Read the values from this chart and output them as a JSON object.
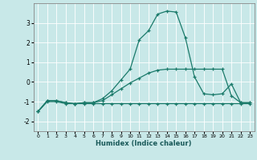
{
  "xlabel": "Humidex (Indice chaleur)",
  "background_color": "#c8e8e8",
  "grid_color": "#ffffff",
  "line_color": "#1a7a6a",
  "xlim": [
    -0.5,
    23.5
  ],
  "ylim": [
    -2.5,
    4.0
  ],
  "yticks": [
    -2,
    -1,
    0,
    1,
    2,
    3
  ],
  "xticks": [
    0,
    1,
    2,
    3,
    4,
    5,
    6,
    7,
    8,
    9,
    10,
    11,
    12,
    13,
    14,
    15,
    16,
    17,
    18,
    19,
    20,
    21,
    22,
    23
  ],
  "line_flat_x": [
    0,
    1,
    2,
    3,
    4,
    5,
    6,
    7,
    8,
    9,
    10,
    11,
    12,
    13,
    14,
    15,
    16,
    17,
    18,
    19,
    20,
    21,
    22,
    23
  ],
  "line_flat_y": [
    -1.5,
    -1.0,
    -1.0,
    -1.1,
    -1.1,
    -1.1,
    -1.1,
    -1.1,
    -1.1,
    -1.1,
    -1.1,
    -1.1,
    -1.1,
    -1.1,
    -1.1,
    -1.1,
    -1.1,
    -1.1,
    -1.1,
    -1.1,
    -1.1,
    -1.1,
    -1.1,
    -1.1
  ],
  "line_slope_x": [
    0,
    1,
    2,
    3,
    4,
    5,
    6,
    7,
    8,
    9,
    10,
    11,
    12,
    13,
    14,
    15,
    16,
    17,
    18,
    19,
    20,
    21,
    22,
    23
  ],
  "line_slope_y": [
    -1.5,
    -0.95,
    -0.95,
    -1.05,
    -1.1,
    -1.05,
    -1.05,
    -0.95,
    -0.65,
    -0.35,
    -0.05,
    0.2,
    0.45,
    0.6,
    0.65,
    0.65,
    0.65,
    0.65,
    0.65,
    0.65,
    0.65,
    -0.7,
    -1.05,
    -1.05
  ],
  "line_peak_x": [
    0,
    1,
    2,
    3,
    4,
    5,
    6,
    7,
    8,
    9,
    10,
    11,
    12,
    13,
    14,
    15,
    16,
    17,
    18,
    19,
    20,
    21,
    22,
    23
  ],
  "line_peak_y": [
    -1.5,
    -0.95,
    -0.95,
    -1.05,
    -1.1,
    -1.05,
    -1.05,
    -0.85,
    -0.45,
    0.1,
    0.65,
    2.15,
    2.6,
    3.45,
    3.6,
    3.55,
    2.25,
    0.25,
    -0.6,
    -0.65,
    -0.6,
    -0.1,
    -1.05,
    -1.05
  ]
}
